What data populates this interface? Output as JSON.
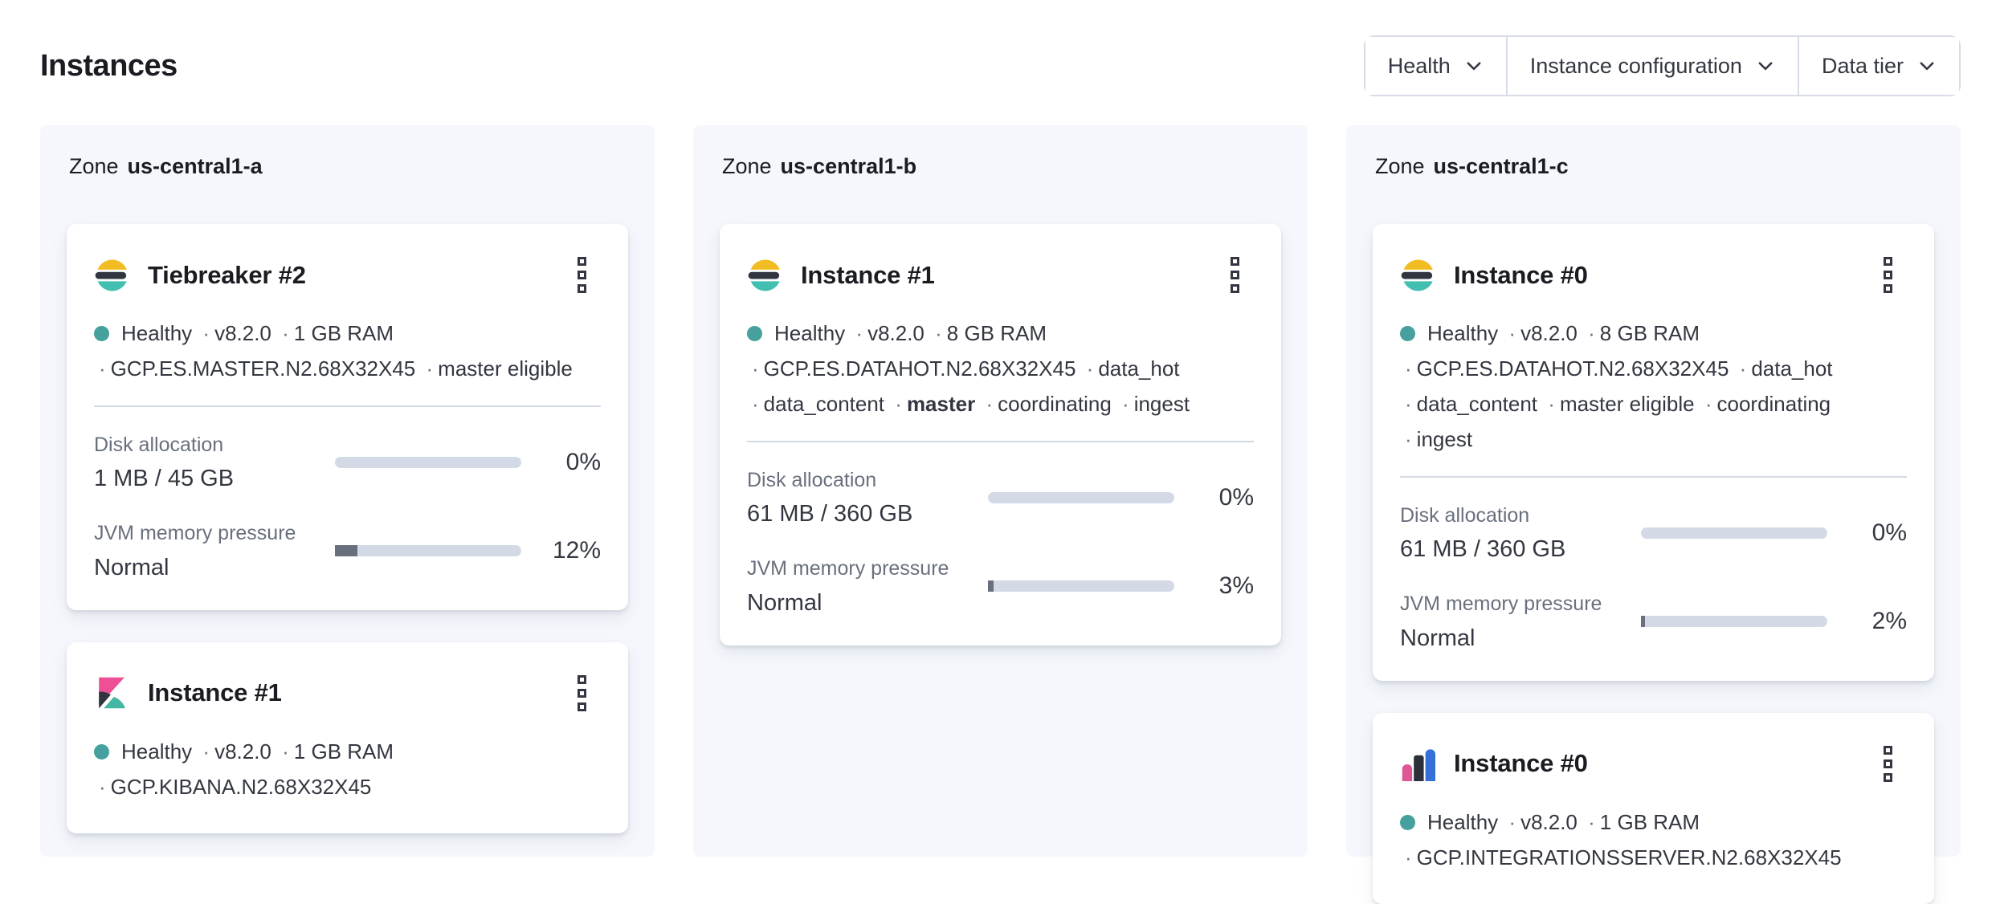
{
  "page": {
    "title": "Instances"
  },
  "ui": {
    "separator": "·"
  },
  "filters": [
    {
      "label": "Health"
    },
    {
      "label": "Instance configuration"
    },
    {
      "label": "Data tier"
    }
  ],
  "colors": {
    "panel_background": "#F5F7FC",
    "card_background": "#FFFFFF",
    "text_primary": "#1A1C21",
    "text_body": "#343741",
    "text_subdued": "#69707D",
    "divider": "#D3DAE6",
    "health_dot": "#45A09E",
    "progress_track": "#D3DAE6",
    "progress_fill": "#69707D",
    "elastic_yellow": "#F2BC23",
    "elastic_dark": "#30353F",
    "elastic_teal": "#43BFB2",
    "kibana_pink": "#EE5096",
    "integrations_pink": "#DE5796",
    "integrations_blue": "#3470D8"
  },
  "zones": [
    {
      "label": "Zone",
      "name": "us-central1-a",
      "cards": [
        {
          "logo": "elasticsearch",
          "title": "Tiebreaker #2",
          "health": "Healthy",
          "version": "v8.2.0",
          "ram": "1 GB RAM",
          "config": "GCP.ES.MASTER.N2.68X32X45",
          "roles": [
            "master eligible"
          ],
          "metrics": [
            {
              "label": "Disk allocation",
              "value": "1 MB / 45 GB",
              "percent": "0%",
              "fill_pct": 0
            },
            {
              "label": "JVM memory pressure",
              "value": "Normal",
              "percent": "12%",
              "fill_pct": 12
            }
          ]
        },
        {
          "logo": "kibana",
          "title": "Instance #1",
          "health": "Healthy",
          "version": "v8.2.0",
          "ram": "1 GB RAM",
          "config": "GCP.KIBANA.N2.68X32X45"
        }
      ]
    },
    {
      "label": "Zone",
      "name": "us-central1-b",
      "cards": [
        {
          "logo": "elasticsearch",
          "title": "Instance #1",
          "health": "Healthy",
          "version": "v8.2.0",
          "ram": "8 GB RAM",
          "config": "GCP.ES.DATAHOT.N2.68X32X45",
          "roles": [
            "data_hot",
            "data_content",
            "master",
            "coordinating",
            "ingest"
          ],
          "metrics": [
            {
              "label": "Disk allocation",
              "value": "61 MB / 360 GB",
              "percent": "0%",
              "fill_pct": 0
            },
            {
              "label": "JVM memory pressure",
              "value": "Normal",
              "percent": "3%",
              "fill_pct": 3
            }
          ]
        }
      ]
    },
    {
      "label": "Zone",
      "name": "us-central1-c",
      "cards": [
        {
          "logo": "elasticsearch",
          "title": "Instance #0",
          "health": "Healthy",
          "version": "v8.2.0",
          "ram": "8 GB RAM",
          "config": "GCP.ES.DATAHOT.N2.68X32X45",
          "roles": [
            "data_hot",
            "data_content",
            "master eligible",
            "coordinating",
            "ingest"
          ],
          "metrics": [
            {
              "label": "Disk allocation",
              "value": "61 MB / 360 GB",
              "percent": "0%",
              "fill_pct": 0
            },
            {
              "label": "JVM memory pressure",
              "value": "Normal",
              "percent": "2%",
              "fill_pct": 2
            }
          ]
        },
        {
          "logo": "integrations-server",
          "title": "Instance #0",
          "health": "Healthy",
          "version": "v8.2.0",
          "ram": "1 GB RAM",
          "config": "GCP.INTEGRATIONSSERVER.N2.68X32X45"
        }
      ]
    }
  ]
}
